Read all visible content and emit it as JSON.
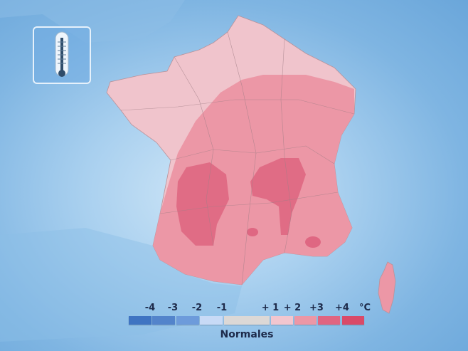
{
  "legend": {
    "labels": [
      "-4",
      "-3",
      "-2",
      "-1",
      "+ 1",
      "+ 2",
      "+3",
      "+4",
      "°C"
    ],
    "caption": "Normales",
    "segments": [
      {
        "label": "-4",
        "color": "#3f74c2"
      },
      {
        "label": "-3",
        "color": "#5384cb"
      },
      {
        "label": "-2",
        "color": "#6d9bdb"
      },
      {
        "label": "-1",
        "color": "#c8daf6"
      },
      {
        "label": "Normales",
        "color": "#dcd8d6"
      },
      {
        "label": "+1",
        "color": "#f2c6cf"
      },
      {
        "label": "+2",
        "color": "#ec97a6"
      },
      {
        "label": "+3",
        "color": "#e06581"
      },
      {
        "label": "+4",
        "color": "#d94a68"
      }
    ]
  },
  "map": {
    "region": "France",
    "base_anomaly": "+1",
    "zones": [
      {
        "anomaly": "+1",
        "color": "#f0c4cc",
        "area": "north-west / Brittany / Normandy / Nord"
      },
      {
        "anomaly": "+2",
        "color": "#ec97a6",
        "area": "centre, east and south"
      },
      {
        "anomaly": "+3",
        "color": "#df6782",
        "area": "south-west and Massif Central / Rhône"
      }
    ]
  },
  "icon": "thermometer-icon"
}
